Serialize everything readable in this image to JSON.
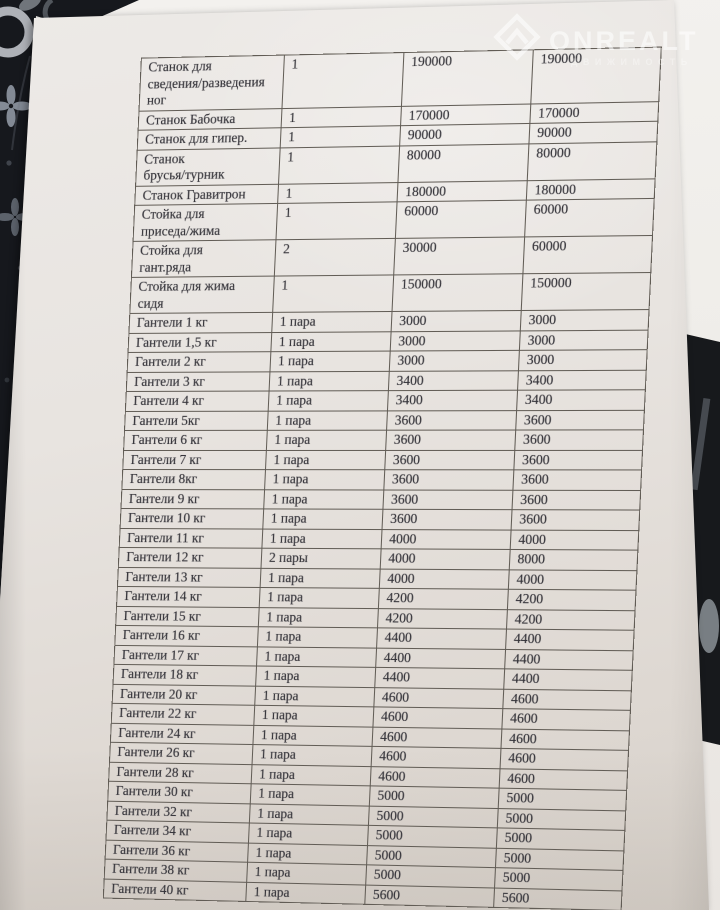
{
  "watermark": {
    "brand": "ONREALT",
    "subtitle": "ДВИЖИМОСТЬ",
    "icon": "diamond-house-icon",
    "color": "#ffffff"
  },
  "page": {
    "paper_color": "#e8e4e0",
    "back_sheet_color": "#f1efec",
    "fabric_color": "#16181d",
    "fabric_motif_color": "#979ea8",
    "table_line_color": "#615c55",
    "text_color": "#35343a"
  },
  "document": {
    "kind": "photographed price list (gym equipment, RU)",
    "rows": [
      {
        "name": "Станок для\nсведения/разведения\nног",
        "qty": "1",
        "price": "190000",
        "total": "190000"
      },
      {
        "name": "Станок Бабочка",
        "qty": "1",
        "price": "170000",
        "total": "170000"
      },
      {
        "name": "Станок для гипер.",
        "qty": "1",
        "price": "90000",
        "total": "90000"
      },
      {
        "name": "Станок\nбрусья/турник",
        "qty": "1",
        "price": "80000",
        "total": "80000"
      },
      {
        "name": "Станок Гравитрон",
        "qty": "1",
        "price": "180000",
        "total": "180000"
      },
      {
        "name": "Стойка для\nприседа/жима",
        "qty": "1",
        "price": "60000",
        "total": "60000"
      },
      {
        "name": "Стойка для\nгант.ряда",
        "qty": "2",
        "price": "30000",
        "total": "60000"
      },
      {
        "name": "Стойка для жима\nсидя",
        "qty": "1",
        "price": "150000",
        "total": "150000"
      },
      {
        "name": "Гантели 1 кг",
        "qty": "1 пара",
        "price": "3000",
        "total": "3000"
      },
      {
        "name": "Гантели 1,5 кг",
        "qty": "1 пара",
        "price": "3000",
        "total": "3000"
      },
      {
        "name": "Гантели 2 кг",
        "qty": "1 пара",
        "price": "3000",
        "total": "3000"
      },
      {
        "name": "Гантели 3 кг",
        "qty": "1 пара",
        "price": "3400",
        "total": "3400"
      },
      {
        "name": "Гантели 4 кг",
        "qty": "1 пара",
        "price": "3400",
        "total": "3400"
      },
      {
        "name": "Гантели 5кг",
        "qty": "1 пара",
        "price": "3600",
        "total": "3600"
      },
      {
        "name": "Гантели 6 кг",
        "qty": "1 пара",
        "price": "3600",
        "total": "3600"
      },
      {
        "name": "Гантели 7 кг",
        "qty": "1 пара",
        "price": "3600",
        "total": "3600"
      },
      {
        "name": "Гантели 8кг",
        "qty": "1 пара",
        "price": "3600",
        "total": "3600"
      },
      {
        "name": "Гантели 9 кг",
        "qty": "1 пара",
        "price": "3600",
        "total": "3600"
      },
      {
        "name": "Гантели 10 кг",
        "qty": "1 пара",
        "price": "3600",
        "total": "3600"
      },
      {
        "name": "Гантели 11 кг",
        "qty": "1 пара",
        "price": "4000",
        "total": "4000"
      },
      {
        "name": "Гантели 12 кг",
        "qty": "2 пары",
        "price": "4000",
        "total": "8000"
      },
      {
        "name": "Гантели 13 кг",
        "qty": "1 пара",
        "price": "4000",
        "total": "4000"
      },
      {
        "name": "Гантели 14 кг",
        "qty": "1 пара",
        "price": "4200",
        "total": "4200"
      },
      {
        "name": "Гантели 15 кг",
        "qty": "1 пара",
        "price": "4200",
        "total": "4200"
      },
      {
        "name": "Гантели 16 кг",
        "qty": "1 пара",
        "price": "4400",
        "total": "4400"
      },
      {
        "name": "Гантели 17 кг",
        "qty": "1 пара",
        "price": "4400",
        "total": "4400"
      },
      {
        "name": "Гантели 18 кг",
        "qty": "1 пара",
        "price": "4400",
        "total": "4400"
      },
      {
        "name": "Гантели 20 кг",
        "qty": "1 пара",
        "price": "4600",
        "total": "4600"
      },
      {
        "name": "Гантели 22 кг",
        "qty": "1 пара",
        "price": "4600",
        "total": "4600"
      },
      {
        "name": "Гантели 24 кг",
        "qty": "1 пара",
        "price": "4600",
        "total": "4600"
      },
      {
        "name": "Гантели 26 кг",
        "qty": "1 пара",
        "price": "4600",
        "total": "4600"
      },
      {
        "name": "Гантели 28 кг",
        "qty": "1 пара",
        "price": "4600",
        "total": "4600"
      },
      {
        "name": "Гантели 30 кг",
        "qty": "1 пара",
        "price": "5000",
        "total": "5000"
      },
      {
        "name": "Гантели 32 кг",
        "qty": "1 пара",
        "price": "5000",
        "total": "5000"
      },
      {
        "name": "Гантели 34 кг",
        "qty": "1 пара",
        "price": "5000",
        "total": "5000"
      },
      {
        "name": "Гантели 36 кг",
        "qty": "1 пара",
        "price": "5000",
        "total": "5000"
      },
      {
        "name": "Гантели 38 кг",
        "qty": "1 пара",
        "price": "5000",
        "total": "5000"
      },
      {
        "name": "Гантели 40 кг",
        "qty": "1 пара",
        "price": "5600",
        "total": "5600"
      }
    ]
  }
}
